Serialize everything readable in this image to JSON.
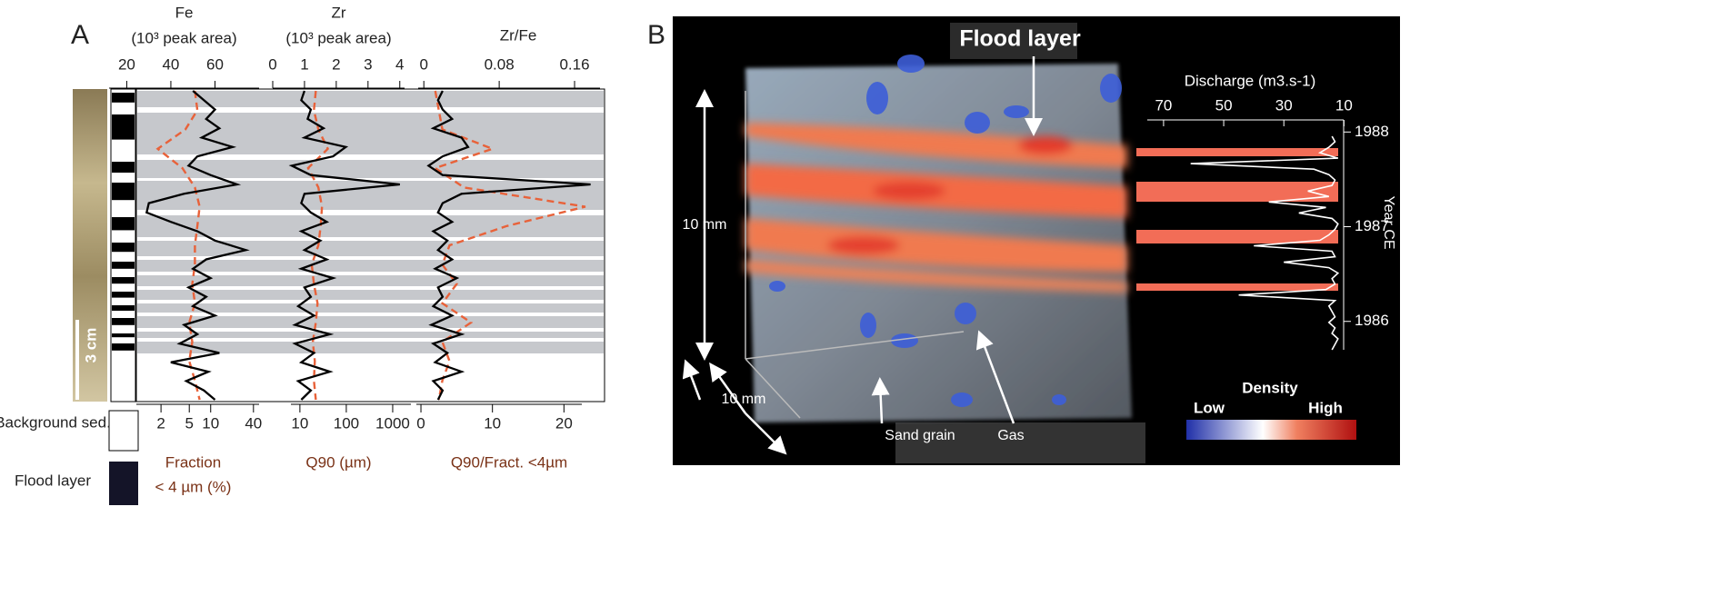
{
  "panel_a": {
    "label": "A",
    "tracks": [
      {
        "title": "Fe",
        "subtitle": "(10³ peak area)",
        "xlim": [
          12,
          80
        ],
        "xticks": [
          20,
          40,
          60
        ],
        "values": [
          50,
          55,
          60,
          56,
          62,
          54,
          68,
          52,
          48,
          58,
          70,
          46,
          30,
          29,
          40,
          52,
          60,
          74,
          56,
          50,
          58,
          48,
          56,
          50,
          60,
          46,
          52,
          44,
          62,
          40,
          57,
          47,
          55,
          60
        ],
        "bottom_label": [
          "Fraction",
          "< 4 µm (%)"
        ],
        "bottom_log": true,
        "bottom_xlim": [
          0.9,
          48
        ],
        "bottom_xticks": [
          2,
          5,
          10,
          40
        ],
        "dashed_values": [
          6,
          6.5,
          4.4,
          1.8,
          4,
          6,
          7,
          6.5,
          6,
          6,
          5.5,
          6,
          5,
          5.5,
          5,
          6,
          7
        ]
      },
      {
        "title": "Zr",
        "subtitle": "(10³ peak area)",
        "xlim": [
          0,
          4.15
        ],
        "xticks": [
          0,
          1,
          2,
          3,
          4
        ],
        "values": [
          1.0,
          0.9,
          1.2,
          1.1,
          1.6,
          1.0,
          2.3,
          1.9,
          0.6,
          1.2,
          4.0,
          1.0,
          0.9,
          1.2,
          1.7,
          0.9,
          1.5,
          1.0,
          1.7,
          0.9,
          1.9,
          1.0,
          1.2,
          0.8,
          1.3,
          0.7,
          1.8,
          0.7,
          1.3,
          0.9,
          1.8,
          0.8,
          1.2,
          0.9
        ],
        "bottom_label": [
          "Q90 (µm)"
        ],
        "bottom_log": true,
        "bottom_xlim": [
          6.4,
          2470
        ],
        "bottom_xticks": [
          10,
          100,
          1000
        ],
        "dashed_values": [
          22,
          20,
          25,
          40,
          15,
          25,
          30,
          28,
          25,
          18,
          20,
          24,
          22,
          19,
          21,
          20,
          22
        ]
      },
      {
        "title": "Zr/Fe",
        "xlim": [
          -0.006,
          0.187
        ],
        "xticks": [
          0,
          0.08,
          0.16
        ],
        "values": [
          0.02,
          0.015,
          0.02,
          0.03,
          0.01,
          0.04,
          0.047,
          0.02,
          0.005,
          0.02,
          0.177,
          0.04,
          0.02,
          0.015,
          0.03,
          0.01,
          0.025,
          0.015,
          0.03,
          0.012,
          0.035,
          0.015,
          0.02,
          0.01,
          0.03,
          0.008,
          0.04,
          0.01,
          0.025,
          0.012,
          0.04,
          0.01,
          0.02,
          0.015
        ],
        "bottom_label": [
          "Q90/Fract. <4µm"
        ],
        "bottom_log": false,
        "bottom_xlim": [
          -0.64,
          22.5
        ],
        "bottom_xticks": [
          0,
          10,
          20
        ],
        "dashed_values": [
          2,
          2.5,
          3,
          10,
          2,
          6,
          23,
          12,
          4,
          3,
          5,
          3,
          7,
          3,
          4,
          3,
          2.5
        ]
      }
    ],
    "scale_bar": "3 cm",
    "legend": [
      {
        "label": "Background sed."
      },
      {
        "label": "Flood layer"
      }
    ]
  },
  "panel_b": {
    "label": "B",
    "flood_label": "Flood layer",
    "scale_vertical": "10 mm",
    "scale_depth": "10 mm",
    "sand_label": "Sand grain",
    "gas_label": "Gas",
    "discharge": {
      "title": "Discharge (m3.s-1)",
      "xlim": [
        73,
        8
      ],
      "xticks": [
        70,
        50,
        30,
        10
      ],
      "ylim": [
        1988.07,
        1985.7
      ],
      "yticks": [
        1988,
        1987,
        1986
      ],
      "ylabel": "Year CE",
      "values": [
        14,
        13,
        15,
        18,
        12,
        61,
        20,
        15,
        13,
        14,
        22,
        15,
        35,
        16,
        25,
        14,
        12,
        13,
        15,
        18,
        40,
        14,
        13,
        30,
        15,
        12,
        14,
        13,
        16,
        45,
        13,
        15,
        14,
        13,
        15,
        13,
        14,
        12,
        13,
        14
      ]
    },
    "colorbar": {
      "title": "Density",
      "low": "Low",
      "high": "High"
    }
  }
}
